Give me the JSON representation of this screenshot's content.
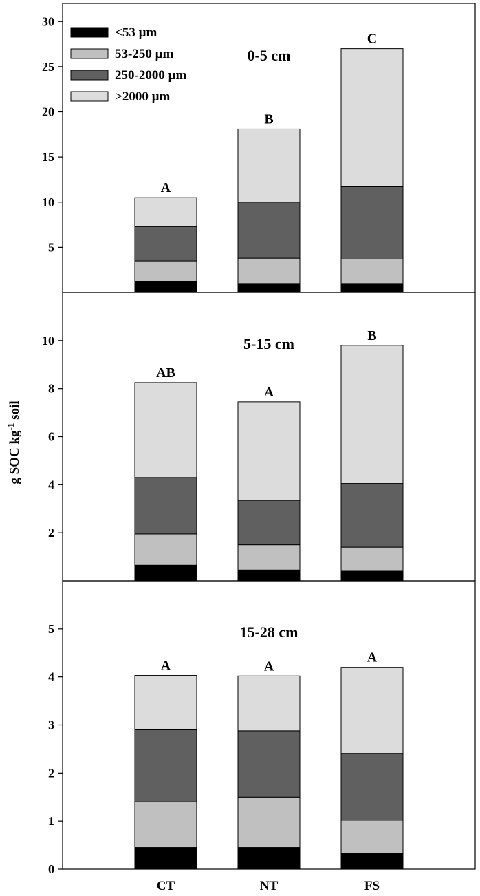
{
  "chart_data": {
    "type": "bar",
    "stacked": true,
    "ylabel_parts": {
      "main": "g SOC kg",
      "sup": "-1",
      "tail": " soil"
    },
    "categories": [
      "CT",
      "NT",
      "FS"
    ],
    "legend": [
      {
        "name": "<53 µm",
        "color": "#000000"
      },
      {
        "name": "53-250 µm",
        "color": "#c0c0c0"
      },
      {
        "name": "250-2000 µm",
        "color": "#606060"
      },
      {
        "name": ">2000 µm",
        "color": "#dcdcdc"
      }
    ],
    "panels": [
      {
        "depth_label": "0-5 cm",
        "ylim": [
          0,
          32
        ],
        "yticks": [
          5,
          10,
          15,
          20,
          25,
          30
        ],
        "series": [
          {
            "name": "<53 µm",
            "values": [
              1.2,
              1.0,
              1.0
            ]
          },
          {
            "name": "53-250 µm",
            "values": [
              2.3,
              2.8,
              2.7
            ]
          },
          {
            "name": "250-2000 µm",
            "values": [
              3.8,
              6.2,
              8.0
            ]
          },
          {
            "name": ">2000 µm",
            "values": [
              3.2,
              8.1,
              15.3
            ]
          }
        ],
        "significance": [
          "A",
          "B",
          "C"
        ]
      },
      {
        "depth_label": "5-15 cm",
        "ylim": [
          0,
          12
        ],
        "yticks": [
          2,
          4,
          6,
          8,
          10
        ],
        "series": [
          {
            "name": "<53 µm",
            "values": [
              0.65,
              0.45,
              0.4
            ]
          },
          {
            "name": "53-250 µm",
            "values": [
              1.3,
              1.05,
              1.0
            ]
          },
          {
            "name": "250-2000 µm",
            "values": [
              2.35,
              1.85,
              2.65
            ]
          },
          {
            "name": ">2000 µm",
            "values": [
              3.95,
              4.1,
              5.75
            ]
          }
        ],
        "significance": [
          "AB",
          "A",
          "B"
        ]
      },
      {
        "depth_label": "15-28 cm",
        "ylim": [
          0,
          6
        ],
        "yticks": [
          0,
          1,
          2,
          3,
          4,
          5
        ],
        "series": [
          {
            "name": "<53 µm",
            "values": [
              0.45,
              0.45,
              0.33
            ]
          },
          {
            "name": "53-250 µm",
            "values": [
              0.95,
              1.05,
              0.69
            ]
          },
          {
            "name": "250-2000 µm",
            "values": [
              1.5,
              1.38,
              1.39
            ]
          },
          {
            "name": ">2000 µm",
            "values": [
              1.13,
              1.14,
              1.79
            ]
          }
        ],
        "significance": [
          "A",
          "A",
          "A"
        ]
      }
    ]
  }
}
